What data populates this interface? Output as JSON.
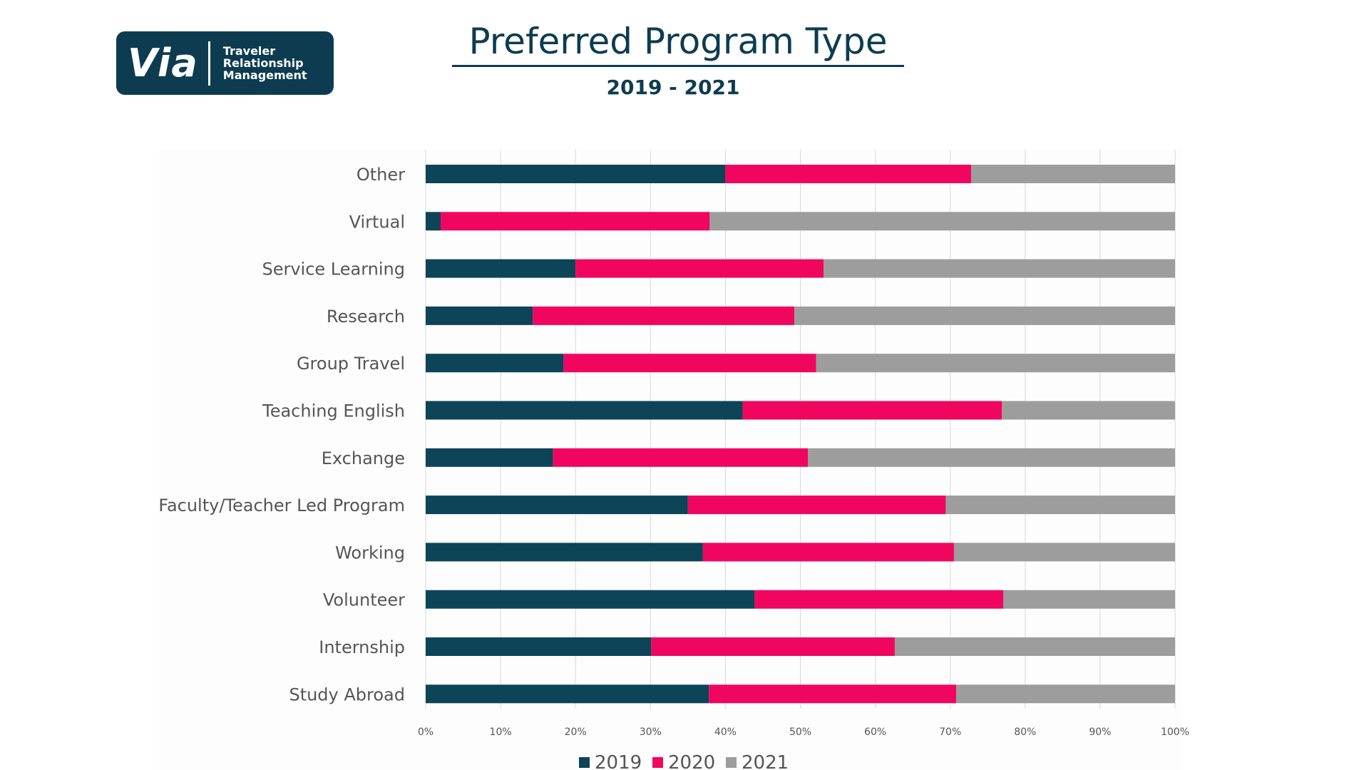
{
  "logo": {
    "wordmark": "Via",
    "tagline": "Traveler\nRelationship\nManagement"
  },
  "title": "Preferred Program Type",
  "subtitle": "2019 - 2021",
  "colors": {
    "s2019": "#0d4458",
    "s2020": "#f0065f",
    "s2021": "#9d9d9d",
    "grid": "#d9d9d9"
  },
  "chart_data": {
    "type": "bar",
    "orientation": "horizontal",
    "stacked": "percent",
    "title": "Preferred Program Type",
    "subtitle": "2019 - 2021",
    "categories": [
      "Other",
      "Virtual",
      "Service Learning",
      "Research",
      "Group Travel",
      "Teaching English",
      "Exchange",
      "Faculty/Teacher Led Program",
      "Working",
      "Volunteer",
      "Internship",
      "Study Abroad"
    ],
    "series": [
      {
        "name": "2019",
        "color": "#0d4458",
        "values": [
          40,
          2,
          20,
          14.3,
          18.4,
          42.3,
          17,
          35,
          37,
          43.9,
          30.1,
          37.8
        ]
      },
      {
        "name": "2020",
        "color": "#f0065f",
        "values": [
          32.8,
          35.9,
          33.1,
          34.9,
          33.7,
          34.6,
          34,
          34.4,
          33.5,
          33.2,
          32.5,
          33
        ]
      },
      {
        "name": "2021",
        "color": "#9d9d9d",
        "values": [
          27.2,
          62.1,
          46.9,
          50.8,
          47.9,
          23.1,
          49,
          30.6,
          29.5,
          22.9,
          37.4,
          29.2
        ]
      }
    ],
    "xlim": [
      0,
      100
    ],
    "xticks": [
      "0%",
      "10%",
      "20%",
      "30%",
      "40%",
      "50%",
      "60%",
      "70%",
      "80%",
      "90%",
      "100%"
    ],
    "grid": true,
    "legend_position": "bottom"
  }
}
